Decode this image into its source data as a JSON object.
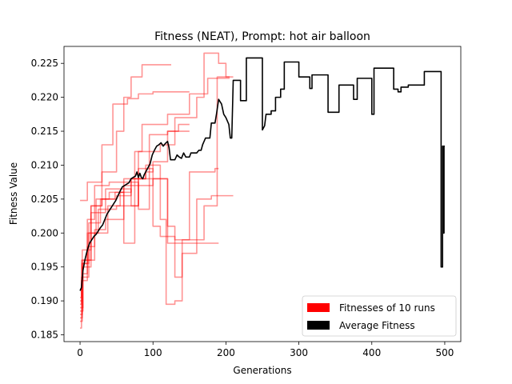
{
  "chart_data": {
    "type": "line",
    "title": "Fitness (NEAT), Prompt: hot air balloon",
    "xlabel": "Generations",
    "ylabel": "Fitness Value",
    "xlim": [
      -22,
      522
    ],
    "ylim": [
      0.184,
      0.2275
    ],
    "xticks": [
      0,
      100,
      200,
      300,
      400,
      500
    ],
    "yticks": [
      0.185,
      0.19,
      0.195,
      0.2,
      0.205,
      0.21,
      0.215,
      0.22,
      0.225
    ],
    "ytick_labels": [
      "0.185",
      "0.190",
      "0.195",
      "0.200",
      "0.205",
      "0.210",
      "0.215",
      "0.220",
      "0.225"
    ],
    "grid": false,
    "legend_position": "lower-right",
    "legend": [
      {
        "label": "Fitnesses of 10 runs",
        "color": "#ff0000"
      },
      {
        "label": "Average Fitness",
        "color": "#000000"
      }
    ],
    "runs_color": "#ff0000",
    "runs_opacity": 0.42,
    "average_color": "#000000",
    "runs": [
      {
        "points": [
          [
            0,
            0.2048
          ],
          [
            10,
            0.2048
          ],
          [
            10,
            0.2075
          ],
          [
            30,
            0.2075
          ],
          [
            30,
            0.209
          ],
          [
            50,
            0.209
          ],
          [
            50,
            0.215
          ],
          [
            60,
            0.215
          ],
          [
            60,
            0.22
          ],
          [
            70,
            0.22
          ],
          [
            70,
            0.223
          ],
          [
            85,
            0.223
          ],
          [
            85,
            0.2248
          ],
          [
            125,
            0.2248
          ]
        ]
      },
      {
        "points": [
          [
            0,
            0.1905
          ],
          [
            2,
            0.1905
          ],
          [
            2,
            0.196
          ],
          [
            15,
            0.196
          ],
          [
            15,
            0.204
          ],
          [
            30,
            0.204
          ],
          [
            30,
            0.213
          ],
          [
            40,
            0.213
          ],
          [
            40,
            0.213
          ],
          [
            45,
            0.213
          ],
          [
            45,
            0.219
          ],
          [
            65,
            0.219
          ],
          [
            65,
            0.2198
          ],
          [
            80,
            0.2198
          ],
          [
            80,
            0.2205
          ],
          [
            100,
            0.2205
          ],
          [
            100,
            0.2208
          ],
          [
            150,
            0.2208
          ]
        ]
      },
      {
        "points": [
          [
            0,
            0.187
          ],
          [
            3,
            0.187
          ],
          [
            3,
            0.1955
          ],
          [
            10,
            0.1955
          ],
          [
            10,
            0.2
          ],
          [
            22,
            0.2
          ],
          [
            22,
            0.205
          ],
          [
            40,
            0.205
          ],
          [
            40,
            0.206
          ],
          [
            60,
            0.206
          ],
          [
            60,
            0.207
          ],
          [
            75,
            0.207
          ],
          [
            75,
            0.212
          ],
          [
            85,
            0.212
          ],
          [
            85,
            0.216
          ],
          [
            120,
            0.216
          ],
          [
            120,
            0.2175
          ],
          [
            150,
            0.2175
          ],
          [
            150,
            0.2205
          ],
          [
            175,
            0.2205
          ],
          [
            175,
            0.2228
          ],
          [
            205,
            0.2228
          ]
        ]
      },
      {
        "points": [
          [
            0,
            0.186
          ],
          [
            2,
            0.186
          ],
          [
            2,
            0.1935
          ],
          [
            12,
            0.1935
          ],
          [
            12,
            0.2
          ],
          [
            25,
            0.2
          ],
          [
            25,
            0.2035
          ],
          [
            50,
            0.2035
          ],
          [
            50,
            0.204
          ],
          [
            80,
            0.204
          ],
          [
            80,
            0.212
          ],
          [
            95,
            0.212
          ],
          [
            95,
            0.2145
          ],
          [
            120,
            0.2145
          ],
          [
            120,
            0.215
          ],
          [
            150,
            0.215
          ]
        ]
      },
      {
        "points": [
          [
            0,
            0.1885
          ],
          [
            4,
            0.1885
          ],
          [
            4,
            0.196
          ],
          [
            20,
            0.196
          ],
          [
            20,
            0.2
          ],
          [
            38,
            0.2
          ],
          [
            38,
            0.204
          ],
          [
            55,
            0.204
          ],
          [
            55,
            0.206
          ],
          [
            60,
            0.206
          ],
          [
            60,
            0.1985
          ],
          [
            75,
            0.1985
          ],
          [
            75,
            0.207
          ],
          [
            100,
            0.207
          ],
          [
            100,
            0.208
          ],
          [
            120,
            0.208
          ],
          [
            120,
            0.201
          ],
          [
            130,
            0.201
          ],
          [
            130,
            0.1935
          ],
          [
            140,
            0.1935
          ],
          [
            140,
            0.199
          ],
          [
            170,
            0.199
          ],
          [
            170,
            0.204
          ],
          [
            188,
            0.204
          ],
          [
            188,
            0.223
          ],
          [
            210,
            0.223
          ]
        ]
      },
      {
        "points": [
          [
            0,
            0.188
          ],
          [
            3,
            0.188
          ],
          [
            3,
            0.195
          ],
          [
            15,
            0.195
          ],
          [
            15,
            0.203
          ],
          [
            35,
            0.203
          ],
          [
            35,
            0.2065
          ],
          [
            60,
            0.2065
          ],
          [
            60,
            0.2065
          ],
          [
            70,
            0.2065
          ],
          [
            70,
            0.204
          ],
          [
            80,
            0.204
          ],
          [
            80,
            0.208
          ],
          [
            110,
            0.208
          ],
          [
            110,
            0.202
          ],
          [
            118,
            0.202
          ],
          [
            118,
            0.1895
          ],
          [
            130,
            0.1895
          ],
          [
            130,
            0.19
          ],
          [
            140,
            0.19
          ],
          [
            140,
            0.197
          ],
          [
            160,
            0.197
          ],
          [
            160,
            0.205
          ],
          [
            180,
            0.205
          ],
          [
            180,
            0.2055
          ],
          [
            210,
            0.2055
          ]
        ]
      },
      {
        "points": [
          [
            0,
            0.189
          ],
          [
            4,
            0.189
          ],
          [
            4,
            0.194
          ],
          [
            10,
            0.194
          ],
          [
            10,
            0.202
          ],
          [
            20,
            0.202
          ],
          [
            20,
            0.207
          ],
          [
            40,
            0.207
          ],
          [
            40,
            0.2075
          ],
          [
            80,
            0.2075
          ],
          [
            80,
            0.2035
          ],
          [
            95,
            0.2035
          ],
          [
            95,
            0.212
          ],
          [
            110,
            0.212
          ],
          [
            110,
            0.213
          ],
          [
            130,
            0.213
          ],
          [
            130,
            0.217
          ],
          [
            160,
            0.217
          ],
          [
            160,
            0.22
          ],
          [
            170,
            0.22
          ],
          [
            170,
            0.2265
          ],
          [
            190,
            0.2265
          ],
          [
            190,
            0.225
          ],
          [
            200,
            0.225
          ],
          [
            200,
            0.223
          ],
          [
            205,
            0.223
          ]
        ]
      },
      {
        "points": [
          [
            0,
            0.19
          ],
          [
            3,
            0.19
          ],
          [
            3,
            0.1975
          ],
          [
            15,
            0.1975
          ],
          [
            15,
            0.204
          ],
          [
            30,
            0.204
          ],
          [
            30,
            0.205
          ],
          [
            50,
            0.205
          ],
          [
            50,
            0.2055
          ],
          [
            70,
            0.2055
          ],
          [
            70,
            0.208
          ],
          [
            90,
            0.208
          ],
          [
            90,
            0.209
          ],
          [
            100,
            0.209
          ],
          [
            100,
            0.2105
          ],
          [
            120,
            0.2105
          ],
          [
            120,
            0.215
          ],
          [
            135,
            0.215
          ],
          [
            135,
            0.216
          ],
          [
            150,
            0.216
          ]
        ]
      },
      {
        "points": [
          [
            0,
            0.1895
          ],
          [
            2,
            0.1895
          ],
          [
            2,
            0.193
          ],
          [
            10,
            0.193
          ],
          [
            10,
            0.198
          ],
          [
            20,
            0.198
          ],
          [
            20,
            0.2005
          ],
          [
            35,
            0.2005
          ],
          [
            35,
            0.202
          ],
          [
            60,
            0.202
          ],
          [
            60,
            0.208
          ],
          [
            80,
            0.208
          ],
          [
            80,
            0.2095
          ],
          [
            100,
            0.2095
          ],
          [
            100,
            0.201
          ],
          [
            110,
            0.201
          ],
          [
            110,
            0.1995
          ],
          [
            130,
            0.1995
          ],
          [
            130,
            0.199
          ],
          [
            150,
            0.199
          ],
          [
            150,
            0.209
          ],
          [
            185,
            0.209
          ],
          [
            185,
            0.2095
          ],
          [
            190,
            0.2095
          ]
        ]
      },
      {
        "points": [
          [
            0,
            0.1875
          ],
          [
            3,
            0.1875
          ],
          [
            3,
            0.1955
          ],
          [
            12,
            0.1955
          ],
          [
            12,
            0.2015
          ],
          [
            28,
            0.2015
          ],
          [
            28,
            0.205
          ],
          [
            48,
            0.205
          ],
          [
            48,
            0.206
          ],
          [
            70,
            0.206
          ],
          [
            70,
            0.208
          ],
          [
            90,
            0.208
          ],
          [
            90,
            0.21
          ],
          [
            110,
            0.21
          ],
          [
            110,
            0.208
          ],
          [
            120,
            0.208
          ],
          [
            120,
            0.1985
          ],
          [
            140,
            0.1985
          ],
          [
            140,
            0.1985
          ],
          [
            190,
            0.1985
          ]
        ]
      }
    ],
    "average": [
      [
        0,
        0.1915
      ],
      [
        2,
        0.192
      ],
      [
        4,
        0.1945
      ],
      [
        7,
        0.1962
      ],
      [
        10,
        0.1975
      ],
      [
        13,
        0.1985
      ],
      [
        16,
        0.199
      ],
      [
        19,
        0.1995
      ],
      [
        22,
        0.1998
      ],
      [
        25,
        0.2003
      ],
      [
        28,
        0.2008
      ],
      [
        31,
        0.2012
      ],
      [
        34,
        0.202
      ],
      [
        37,
        0.2028
      ],
      [
        40,
        0.2033
      ],
      [
        43,
        0.2038
      ],
      [
        46,
        0.2043
      ],
      [
        49,
        0.2048
      ],
      [
        52,
        0.2055
      ],
      [
        55,
        0.2062
      ],
      [
        58,
        0.2068
      ],
      [
        61,
        0.207
      ],
      [
        64,
        0.2072
      ],
      [
        67,
        0.2074
      ],
      [
        70,
        0.208
      ],
      [
        73,
        0.2082
      ],
      [
        76,
        0.2084
      ],
      [
        78,
        0.209
      ],
      [
        80,
        0.2082
      ],
      [
        82,
        0.2088
      ],
      [
        84,
        0.2082
      ],
      [
        86,
        0.208
      ],
      [
        88,
        0.2086
      ],
      [
        90,
        0.209
      ],
      [
        93,
        0.2096
      ],
      [
        96,
        0.2102
      ],
      [
        99,
        0.2115
      ],
      [
        102,
        0.2122
      ],
      [
        105,
        0.2128
      ],
      [
        108,
        0.213
      ],
      [
        111,
        0.2133
      ],
      [
        114,
        0.2128
      ],
      [
        117,
        0.2132
      ],
      [
        120,
        0.2135
      ],
      [
        122,
        0.2126
      ],
      [
        124,
        0.2108
      ],
      [
        130,
        0.2108
      ],
      [
        133,
        0.2115
      ],
      [
        136,
        0.2112
      ],
      [
        139,
        0.211
      ],
      [
        142,
        0.2118
      ],
      [
        145,
        0.2112
      ],
      [
        150,
        0.2112
      ],
      [
        152,
        0.2118
      ],
      [
        156,
        0.2118
      ],
      [
        160,
        0.2118
      ],
      [
        163,
        0.2122
      ],
      [
        166,
        0.2122
      ],
      [
        168,
        0.213
      ],
      [
        172,
        0.214
      ],
      [
        178,
        0.214
      ],
      [
        180,
        0.2162
      ],
      [
        185,
        0.2162
      ],
      [
        187,
        0.2175
      ],
      [
        190,
        0.2197
      ],
      [
        194,
        0.219
      ],
      [
        197,
        0.2175
      ],
      [
        200,
        0.217
      ],
      [
        204,
        0.216
      ],
      [
        206,
        0.214
      ],
      [
        208,
        0.214
      ],
      [
        210,
        0.2225
      ],
      [
        220,
        0.2225
      ],
      [
        220,
        0.2195
      ],
      [
        228,
        0.2195
      ],
      [
        228,
        0.2258
      ],
      [
        250,
        0.2258
      ],
      [
        250,
        0.2152
      ],
      [
        253,
        0.2158
      ],
      [
        255,
        0.2175
      ],
      [
        262,
        0.2175
      ],
      [
        262,
        0.218
      ],
      [
        268,
        0.218
      ],
      [
        268,
        0.22
      ],
      [
        275,
        0.22
      ],
      [
        275,
        0.2212
      ],
      [
        280,
        0.2212
      ],
      [
        280,
        0.2252
      ],
      [
        300,
        0.2252
      ],
      [
        300,
        0.223
      ],
      [
        315,
        0.223
      ],
      [
        315,
        0.2213
      ],
      [
        318,
        0.2213
      ],
      [
        318,
        0.2233
      ],
      [
        340,
        0.2233
      ],
      [
        340,
        0.2178
      ],
      [
        355,
        0.2178
      ],
      [
        355,
        0.2218
      ],
      [
        375,
        0.2218
      ],
      [
        375,
        0.2197
      ],
      [
        380,
        0.2197
      ],
      [
        380,
        0.2228
      ],
      [
        400,
        0.2228
      ],
      [
        400,
        0.2175
      ],
      [
        403,
        0.2175
      ],
      [
        403,
        0.2243
      ],
      [
        430,
        0.2243
      ],
      [
        430,
        0.2212
      ],
      [
        436,
        0.2212
      ],
      [
        436,
        0.2208
      ],
      [
        440,
        0.2208
      ],
      [
        440,
        0.2215
      ],
      [
        450,
        0.2215
      ],
      [
        450,
        0.2218
      ],
      [
        472,
        0.2218
      ],
      [
        472,
        0.2238
      ],
      [
        495,
        0.2238
      ],
      [
        495,
        0.195
      ],
      [
        497,
        0.195
      ],
      [
        497,
        0.2128
      ],
      [
        498,
        0.2128
      ],
      [
        498,
        0.2
      ],
      [
        499,
        0.2
      ],
      [
        499,
        0.2128
      ],
      [
        500,
        0.2128
      ]
    ]
  }
}
